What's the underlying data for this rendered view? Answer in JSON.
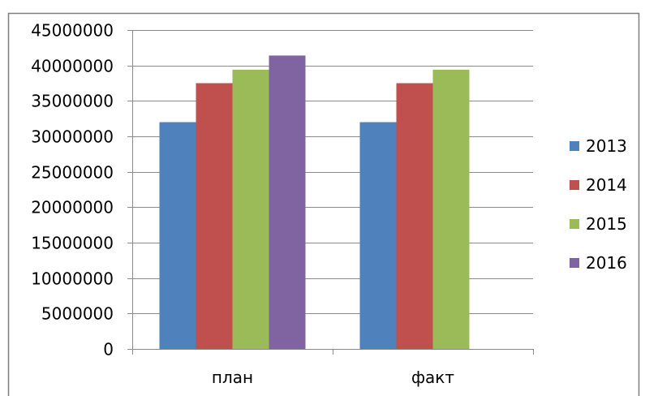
{
  "chart_data": {
    "type": "bar",
    "categories": [
      "план",
      "факт"
    ],
    "series": [
      {
        "name": "2013",
        "values": [
          32000000,
          32000000
        ],
        "color": "#4F81BD"
      },
      {
        "name": "2014",
        "values": [
          37500000,
          37500000
        ],
        "color": "#C0504D"
      },
      {
        "name": "2015",
        "values": [
          39400000,
          39400000
        ],
        "color": "#9BBB59"
      },
      {
        "name": "2016",
        "values": [
          41400000,
          null
        ],
        "color": "#8064A2"
      }
    ],
    "ylim": [
      0,
      45000000
    ],
    "yticks": [
      0,
      5000000,
      10000000,
      15000000,
      20000000,
      25000000,
      30000000,
      35000000,
      40000000,
      45000000
    ],
    "ytick_labels": [
      "0",
      "5000000",
      "10000000",
      "15000000",
      "20000000",
      "25000000",
      "30000000",
      "35000000",
      "40000000",
      "45000000"
    ],
    "grid": true,
    "legend": "right"
  }
}
